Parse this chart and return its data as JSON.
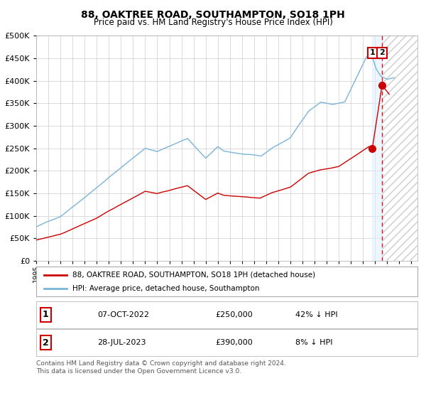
{
  "title": "88, OAKTREE ROAD, SOUTHAMPTON, SO18 1PH",
  "subtitle": "Price paid vs. HM Land Registry's House Price Index (HPI)",
  "legend_line1": "88, OAKTREE ROAD, SOUTHAMPTON, SO18 1PH (detached house)",
  "legend_line2": "HPI: Average price, detached house, Southampton",
  "transaction1_date": "07-OCT-2022",
  "transaction1_price": 250000,
  "transaction1_pct": "42% ↓ HPI",
  "transaction2_date": "28-JUL-2023",
  "transaction2_price": 390000,
  "transaction2_pct": "8% ↓ HPI",
  "footnote1": "Contains HM Land Registry data © Crown copyright and database right 2024.",
  "footnote2": "This data is licensed under the Open Government Licence v3.0.",
  "hpi_color": "#7ab4d8",
  "price_color": "#cc0000",
  "background_color": "#ffffff",
  "grid_color": "#cccccc",
  "hatch_color": "#bbbbbb",
  "ylim": [
    0,
    500000
  ],
  "yticks": [
    0,
    50000,
    100000,
    150000,
    200000,
    250000,
    300000,
    350000,
    400000,
    450000,
    500000
  ],
  "start_year": 1995.0,
  "end_year": 2026.5,
  "transaction1_x": 2022.77,
  "transaction2_x": 2023.57
}
